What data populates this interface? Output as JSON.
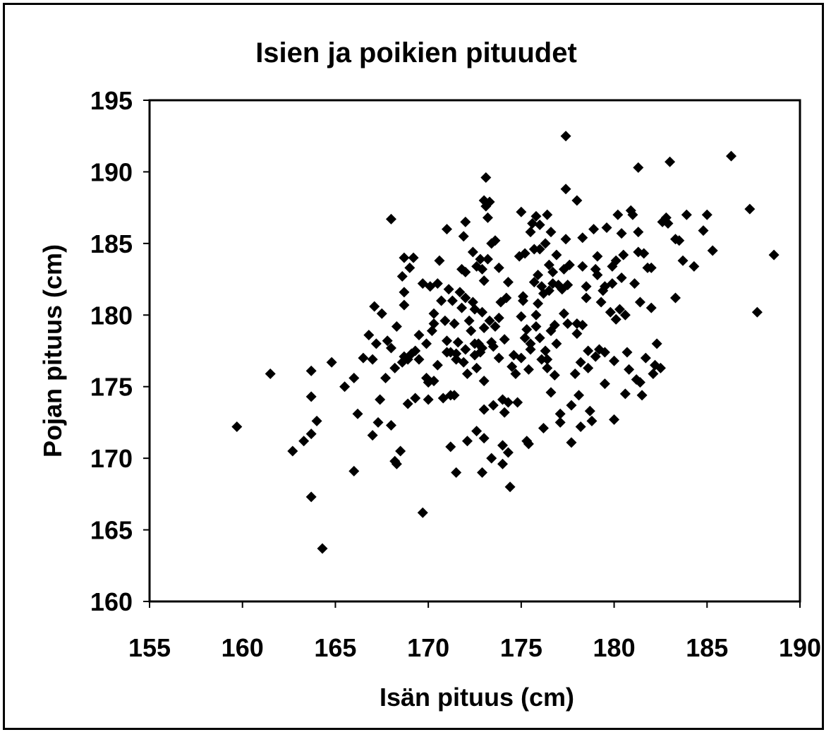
{
  "chart_data": {
    "type": "scatter",
    "title": "Isien ja poikien pituudet",
    "xlabel": "Isän pituus (cm)",
    "ylabel": "Pojan pituus (cm)",
    "xlim": [
      155,
      190
    ],
    "ylim": [
      160,
      195
    ],
    "x_ticks": [
      155,
      160,
      165,
      170,
      175,
      180,
      185,
      190
    ],
    "y_ticks": [
      160,
      165,
      170,
      175,
      180,
      185,
      190,
      195
    ],
    "grid": false,
    "legend": "none",
    "marker": "diamond",
    "marker_color": "#000000",
    "points": [
      [
        159.7,
        172.2
      ],
      [
        161.5,
        175.9
      ],
      [
        162.7,
        170.5
      ],
      [
        163.3,
        171.2
      ],
      [
        163.7,
        171.7
      ],
      [
        163.7,
        174.3
      ],
      [
        163.7,
        176.1
      ],
      [
        163.7,
        167.3
      ],
      [
        164.0,
        172.6
      ],
      [
        164.3,
        163.7
      ],
      [
        164.8,
        176.7
      ],
      [
        165.5,
        175.0
      ],
      [
        166.0,
        175.6
      ],
      [
        166.0,
        169.1
      ],
      [
        166.2,
        173.1
      ],
      [
        166.5,
        177.0
      ],
      [
        166.8,
        178.6
      ],
      [
        167.0,
        176.9
      ],
      [
        167.0,
        171.6
      ],
      [
        167.1,
        180.6
      ],
      [
        167.2,
        178.0
      ],
      [
        167.3,
        172.5
      ],
      [
        167.4,
        174.1
      ],
      [
        167.5,
        180.1
      ],
      [
        167.7,
        175.6
      ],
      [
        167.8,
        178.2
      ],
      [
        168.0,
        177.7
      ],
      [
        168.0,
        172.3
      ],
      [
        168.0,
        186.7
      ],
      [
        168.2,
        176.3
      ],
      [
        168.2,
        169.8
      ],
      [
        168.3,
        179.2
      ],
      [
        168.3,
        169.6
      ],
      [
        168.5,
        170.5
      ],
      [
        168.6,
        182.7
      ],
      [
        168.6,
        176.7
      ],
      [
        168.7,
        184.0
      ],
      [
        168.7,
        181.6
      ],
      [
        168.7,
        180.7
      ],
      [
        168.7,
        177.1
      ],
      [
        168.9,
        173.8
      ],
      [
        168.9,
        176.9
      ],
      [
        169.0,
        183.3
      ],
      [
        169.1,
        177.3
      ],
      [
        169.2,
        184.0
      ],
      [
        169.3,
        174.2
      ],
      [
        169.3,
        177.5
      ],
      [
        169.5,
        178.6
      ],
      [
        169.5,
        176.9
      ],
      [
        169.7,
        182.2
      ],
      [
        169.7,
        166.2
      ],
      [
        169.9,
        175.6
      ],
      [
        169.9,
        178.0
      ],
      [
        170.0,
        175.3
      ],
      [
        170.0,
        174.1
      ],
      [
        170.1,
        182.0
      ],
      [
        170.2,
        178.9
      ],
      [
        170.3,
        180.1
      ],
      [
        170.3,
        179.4
      ],
      [
        170.3,
        175.4
      ],
      [
        170.5,
        176.5
      ],
      [
        170.5,
        182.2
      ],
      [
        170.6,
        183.8
      ],
      [
        170.7,
        181.0
      ],
      [
        170.8,
        174.2
      ],
      [
        170.9,
        179.6
      ],
      [
        171.0,
        186.0
      ],
      [
        171.0,
        177.4
      ],
      [
        171.0,
        178.2
      ],
      [
        171.1,
        181.8
      ],
      [
        171.2,
        174.4
      ],
      [
        171.2,
        170.8
      ],
      [
        171.2,
        177.4
      ],
      [
        171.3,
        181.0
      ],
      [
        171.4,
        174.4
      ],
      [
        171.4,
        179.4
      ],
      [
        171.5,
        169.0
      ],
      [
        171.5,
        176.9
      ],
      [
        171.5,
        177.3
      ],
      [
        171.6,
        178.1
      ],
      [
        171.7,
        181.6
      ],
      [
        171.8,
        180.5
      ],
      [
        171.8,
        183.2
      ],
      [
        171.9,
        176.7
      ],
      [
        171.9,
        185.5
      ],
      [
        172.0,
        186.5
      ],
      [
        172.0,
        183.0
      ],
      [
        172.0,
        181.2
      ],
      [
        172.0,
        177.6
      ],
      [
        172.1,
        171.2
      ],
      [
        172.1,
        175.9
      ],
      [
        172.2,
        179.6
      ],
      [
        172.3,
        178.9
      ],
      [
        172.4,
        184.4
      ],
      [
        172.4,
        180.9
      ],
      [
        172.5,
        180.4
      ],
      [
        172.5,
        178.0
      ],
      [
        172.5,
        177.2
      ],
      [
        172.6,
        176.3
      ],
      [
        172.6,
        183.4
      ],
      [
        172.6,
        171.9
      ],
      [
        172.7,
        178.0
      ],
      [
        172.8,
        177.4
      ],
      [
        172.8,
        183.9
      ],
      [
        172.9,
        169.0
      ],
      [
        172.9,
        180.2
      ],
      [
        172.9,
        177.7
      ],
      [
        172.9,
        183.2
      ],
      [
        173.0,
        188.0
      ],
      [
        173.0,
        182.4
      ],
      [
        173.0,
        179.1
      ],
      [
        173.0,
        175.4
      ],
      [
        173.0,
        173.4
      ],
      [
        173.0,
        171.4
      ],
      [
        173.1,
        189.6
      ],
      [
        173.1,
        187.6
      ],
      [
        173.2,
        186.8
      ],
      [
        173.2,
        183.9
      ],
      [
        173.3,
        187.9
      ],
      [
        173.3,
        179.6
      ],
      [
        173.4,
        185.0
      ],
      [
        173.4,
        178.1
      ],
      [
        173.4,
        170.0
      ],
      [
        173.5,
        177.8
      ],
      [
        173.5,
        173.7
      ],
      [
        173.6,
        185.2
      ],
      [
        173.6,
        179.2
      ],
      [
        173.8,
        179.8
      ],
      [
        173.8,
        177.0
      ],
      [
        173.8,
        183.3
      ],
      [
        173.9,
        180.9
      ],
      [
        174.0,
        170.9
      ],
      [
        174.0,
        169.6
      ],
      [
        174.0,
        174.1
      ],
      [
        174.1,
        173.2
      ],
      [
        174.1,
        178.3
      ],
      [
        174.2,
        181.2
      ],
      [
        174.3,
        182.3
      ],
      [
        174.3,
        173.9
      ],
      [
        174.3,
        170.4
      ],
      [
        174.4,
        168.0
      ],
      [
        174.5,
        176.4
      ],
      [
        174.6,
        177.2
      ],
      [
        174.7,
        175.9
      ],
      [
        174.8,
        173.9
      ],
      [
        174.9,
        184.1
      ],
      [
        175.0,
        187.2
      ],
      [
        175.0,
        179.9
      ],
      [
        175.0,
        177.0
      ],
      [
        175.1,
        181.3
      ],
      [
        175.1,
        181.0
      ],
      [
        175.2,
        184.3
      ],
      [
        175.2,
        178.4
      ],
      [
        175.3,
        171.2
      ],
      [
        175.3,
        179.0
      ],
      [
        175.4,
        176.2
      ],
      [
        175.4,
        171.0
      ],
      [
        175.5,
        177.6
      ],
      [
        175.5,
        185.8
      ],
      [
        175.5,
        178.0
      ],
      [
        175.6,
        186.4
      ],
      [
        175.7,
        184.6
      ],
      [
        175.7,
        182.3
      ],
      [
        175.8,
        180.0
      ],
      [
        175.8,
        179.2
      ],
      [
        175.8,
        186.9
      ],
      [
        175.9,
        182.8
      ],
      [
        175.9,
        180.8
      ],
      [
        176.0,
        178.4
      ],
      [
        176.0,
        186.3
      ],
      [
        176.0,
        184.6
      ],
      [
        176.1,
        182.0
      ],
      [
        176.1,
        176.9
      ],
      [
        176.2,
        172.1
      ],
      [
        176.2,
        181.5
      ],
      [
        176.3,
        185.0
      ],
      [
        176.3,
        177.5
      ],
      [
        176.4,
        176.3
      ],
      [
        176.4,
        176.9
      ],
      [
        176.4,
        187.0
      ],
      [
        176.5,
        181.7
      ],
      [
        176.5,
        183.5
      ],
      [
        176.6,
        178.9
      ],
      [
        176.6,
        174.6
      ],
      [
        176.6,
        185.8
      ],
      [
        176.7,
        182.2
      ],
      [
        176.7,
        183.0
      ],
      [
        176.8,
        179.3
      ],
      [
        176.8,
        175.8
      ],
      [
        176.9,
        178.0
      ],
      [
        176.9,
        184.2
      ],
      [
        177.0,
        182.1
      ],
      [
        177.1,
        173.1
      ],
      [
        177.1,
        172.5
      ],
      [
        177.2,
        181.8
      ],
      [
        177.3,
        183.2
      ],
      [
        177.3,
        180.1
      ],
      [
        177.4,
        192.5
      ],
      [
        177.4,
        185.3
      ],
      [
        177.4,
        188.8
      ],
      [
        177.5,
        182.1
      ],
      [
        177.5,
        179.4
      ],
      [
        177.6,
        183.5
      ],
      [
        177.7,
        173.7
      ],
      [
        177.7,
        171.1
      ],
      [
        177.9,
        175.9
      ],
      [
        178.0,
        188.0
      ],
      [
        178.0,
        178.7
      ],
      [
        178.0,
        179.4
      ],
      [
        178.1,
        174.4
      ],
      [
        178.2,
        172.2
      ],
      [
        178.2,
        176.7
      ],
      [
        178.3,
        183.4
      ],
      [
        178.3,
        185.4
      ],
      [
        178.3,
        179.3
      ],
      [
        178.5,
        182.0
      ],
      [
        178.5,
        181.2
      ],
      [
        178.6,
        177.5
      ],
      [
        178.6,
        176.3
      ],
      [
        178.7,
        173.3
      ],
      [
        178.8,
        172.6
      ],
      [
        178.9,
        186.0
      ],
      [
        179.0,
        183.2
      ],
      [
        179.0,
        177.1
      ],
      [
        179.1,
        182.8
      ],
      [
        179.1,
        184.1
      ],
      [
        179.2,
        177.6
      ],
      [
        179.3,
        180.9
      ],
      [
        179.4,
        181.7
      ],
      [
        179.5,
        182.0
      ],
      [
        179.5,
        177.4
      ],
      [
        179.5,
        175.2
      ],
      [
        179.6,
        186.1
      ],
      [
        179.8,
        180.2
      ],
      [
        179.9,
        182.2
      ],
      [
        179.9,
        183.4
      ],
      [
        180.0,
        172.7
      ],
      [
        180.0,
        176.8
      ],
      [
        180.1,
        179.7
      ],
      [
        180.1,
        183.8
      ],
      [
        180.2,
        187.0
      ],
      [
        180.3,
        180.4
      ],
      [
        180.4,
        185.7
      ],
      [
        180.4,
        182.6
      ],
      [
        180.5,
        184.2
      ],
      [
        180.6,
        174.5
      ],
      [
        180.6,
        180.0
      ],
      [
        180.7,
        177.4
      ],
      [
        180.8,
        176.2
      ],
      [
        180.9,
        187.3
      ],
      [
        181.0,
        187.0
      ],
      [
        181.1,
        182.2
      ],
      [
        181.2,
        175.5
      ],
      [
        181.3,
        190.3
      ],
      [
        181.3,
        185.8
      ],
      [
        181.3,
        184.4
      ],
      [
        181.4,
        180.9
      ],
      [
        181.4,
        175.3
      ],
      [
        181.5,
        174.4
      ],
      [
        181.6,
        184.3
      ],
      [
        181.7,
        177.0
      ],
      [
        181.8,
        183.3
      ],
      [
        182.0,
        180.5
      ],
      [
        182.0,
        183.3
      ],
      [
        182.1,
        175.9
      ],
      [
        182.2,
        176.5
      ],
      [
        182.3,
        178.0
      ],
      [
        182.5,
        176.3
      ],
      [
        182.6,
        186.5
      ],
      [
        182.8,
        186.8
      ],
      [
        182.9,
        186.4
      ],
      [
        183.0,
        190.7
      ],
      [
        183.3,
        185.3
      ],
      [
        183.3,
        181.2
      ],
      [
        183.5,
        185.2
      ],
      [
        183.7,
        183.8
      ],
      [
        183.9,
        187.0
      ],
      [
        184.3,
        183.4
      ],
      [
        184.8,
        185.9
      ],
      [
        185.0,
        187.0
      ],
      [
        185.3,
        184.5
      ],
      [
        186.3,
        191.1
      ],
      [
        187.3,
        187.4
      ],
      [
        187.7,
        180.2
      ],
      [
        188.6,
        184.2
      ]
    ]
  }
}
